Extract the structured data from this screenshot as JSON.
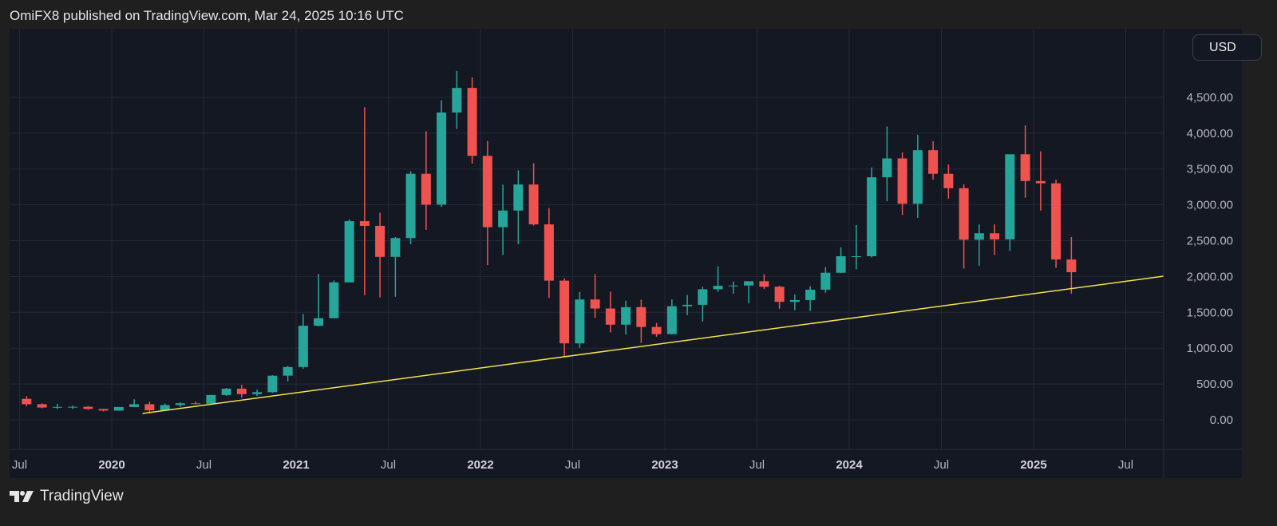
{
  "header": {
    "title": "OmiFX8 published on TradingView.com, Mar 24, 2025 10:16 UTC"
  },
  "currency_button": "USD",
  "footer": {
    "logo_text": "TradingView"
  },
  "colors": {
    "up": "#26a69a",
    "down": "#ef5350",
    "trendline": "#f2e14c",
    "background": "#141823",
    "grid": "#232836"
  },
  "chart_data": {
    "type": "candlestick",
    "interval_note": "",
    "y_axis": {
      "ticks": [
        "0.00",
        "500.00",
        "1,000.00",
        "1,500.00",
        "2,000.00",
        "2,500.00",
        "3,000.00",
        "3,500.00",
        "4,000.00",
        "4,500.00"
      ],
      "tick_values": [
        0,
        500,
        1000,
        1500,
        2000,
        2500,
        3000,
        3500,
        4000,
        4500
      ],
      "ylim": [
        -380,
        5440
      ],
      "position": "right"
    },
    "x_axis": {
      "ticks": [
        {
          "label": "Jul",
          "date": "2019-07-01",
          "year": false
        },
        {
          "label": "2020",
          "date": "2020-01-01",
          "year": true
        },
        {
          "label": "Jul",
          "date": "2020-07-01",
          "year": false
        },
        {
          "label": "2021",
          "date": "2021-01-01",
          "year": true
        },
        {
          "label": "Jul",
          "date": "2021-07-01",
          "year": false
        },
        {
          "label": "2022",
          "date": "2022-01-01",
          "year": true
        },
        {
          "label": "Jul",
          "date": "2022-07-01",
          "year": false
        },
        {
          "label": "2023",
          "date": "2023-01-01",
          "year": true
        },
        {
          "label": "Jul",
          "date": "2023-07-01",
          "year": false
        },
        {
          "label": "2024",
          "date": "2024-01-01",
          "year": true
        },
        {
          "label": "Jul",
          "date": "2024-07-01",
          "year": false
        },
        {
          "label": "2025",
          "date": "2025-01-01",
          "year": true
        },
        {
          "label": "Jul",
          "date": "2025-07-01",
          "year": false
        }
      ],
      "xlim": [
        "2019-06-25",
        "2025-09-15"
      ]
    },
    "grid": true,
    "candles_columns": [
      "date",
      "open",
      "high",
      "low",
      "close"
    ],
    "candles": [
      [
        "2019-07",
        293,
        330,
        191,
        218
      ],
      [
        "2019-08",
        218,
        231,
        163,
        172
      ],
      [
        "2019-09",
        172,
        224,
        152,
        180
      ],
      [
        "2019-10",
        180,
        198,
        152,
        182
      ],
      [
        "2019-11",
        182,
        194,
        139,
        152
      ],
      [
        "2019-12",
        152,
        152,
        117,
        129
      ],
      [
        "2020-01",
        129,
        180,
        127,
        179
      ],
      [
        "2020-02",
        179,
        287,
        177,
        218
      ],
      [
        "2020-03",
        218,
        253,
        90,
        133
      ],
      [
        "2020-04",
        133,
        227,
        130,
        206
      ],
      [
        "2020-05",
        206,
        245,
        176,
        231
      ],
      [
        "2020-06",
        231,
        254,
        216,
        225
      ],
      [
        "2020-07",
        225,
        348,
        224,
        346
      ],
      [
        "2020-08",
        346,
        445,
        335,
        435
      ],
      [
        "2020-09",
        435,
        488,
        308,
        359
      ],
      [
        "2020-10",
        359,
        420,
        334,
        386
      ],
      [
        "2020-11",
        386,
        623,
        374,
        616
      ],
      [
        "2020-12",
        616,
        752,
        535,
        737
      ],
      [
        "2021-01",
        737,
        1476,
        714,
        1313
      ],
      [
        "2021-02",
        1313,
        2036,
        1303,
        1418
      ],
      [
        "2021-03",
        1418,
        1945,
        1437,
        1918
      ],
      [
        "2021-04",
        1918,
        2797,
        1936,
        2772
      ],
      [
        "2021-05",
        2772,
        4362,
        1738,
        2707
      ],
      [
        "2021-06",
        2707,
        2890,
        1707,
        2274
      ],
      [
        "2021-07",
        2274,
        2550,
        1717,
        2536
      ],
      [
        "2021-08",
        2536,
        3471,
        2450,
        3433
      ],
      [
        "2021-09",
        3433,
        4027,
        2651,
        3002
      ],
      [
        "2021-10",
        3002,
        4460,
        2970,
        4288
      ],
      [
        "2021-11",
        4288,
        4868,
        4060,
        4631
      ],
      [
        "2021-12",
        4631,
        4778,
        3575,
        3683
      ],
      [
        "2022-01",
        3683,
        3890,
        2159,
        2688
      ],
      [
        "2022-02",
        2688,
        3282,
        2300,
        2920
      ],
      [
        "2022-03",
        2920,
        3482,
        2450,
        3283
      ],
      [
        "2022-04",
        3283,
        3580,
        2711,
        2727
      ],
      [
        "2022-05",
        2727,
        2955,
        1701,
        1942
      ],
      [
        "2022-06",
        1942,
        1974,
        880,
        1067
      ],
      [
        "2022-07",
        1067,
        1785,
        1006,
        1679
      ],
      [
        "2022-08",
        1679,
        2030,
        1422,
        1553
      ],
      [
        "2022-09",
        1553,
        1790,
        1220,
        1328
      ],
      [
        "2022-10",
        1328,
        1663,
        1190,
        1572
      ],
      [
        "2022-11",
        1572,
        1677,
        1073,
        1296
      ],
      [
        "2022-12",
        1296,
        1352,
        1160,
        1196
      ],
      [
        "2023-01",
        1196,
        1680,
        1190,
        1585
      ],
      [
        "2023-02",
        1585,
        1742,
        1461,
        1605
      ],
      [
        "2023-03",
        1605,
        1857,
        1370,
        1822
      ],
      [
        "2023-04",
        1822,
        2141,
        1785,
        1870
      ],
      [
        "2023-05",
        1870,
        1929,
        1760,
        1874
      ],
      [
        "2023-06",
        1874,
        1930,
        1626,
        1934
      ],
      [
        "2023-07",
        1934,
        2030,
        1825,
        1857
      ],
      [
        "2023-08",
        1857,
        1870,
        1550,
        1646
      ],
      [
        "2023-09",
        1646,
        1750,
        1530,
        1671
      ],
      [
        "2023-10",
        1671,
        1865,
        1520,
        1816
      ],
      [
        "2023-11",
        1816,
        2131,
        1773,
        2052
      ],
      [
        "2023-12",
        2052,
        2405,
        2048,
        2283
      ],
      [
        "2024-01",
        2283,
        2717,
        2100,
        2283
      ],
      [
        "2024-02",
        2283,
        3520,
        2265,
        3384
      ],
      [
        "2024-03",
        3384,
        4093,
        3050,
        3647
      ],
      [
        "2024-04",
        3647,
        3731,
        2858,
        3014
      ],
      [
        "2024-05",
        3014,
        3977,
        2818,
        3762
      ],
      [
        "2024-06",
        3762,
        3887,
        3350,
        3433
      ],
      [
        "2024-07",
        3433,
        3562,
        3086,
        3232
      ],
      [
        "2024-08",
        3232,
        3286,
        2111,
        2513
      ],
      [
        "2024-09",
        2513,
        2726,
        2150,
        2603
      ],
      [
        "2024-10",
        2603,
        2729,
        2300,
        2518
      ],
      [
        "2024-11",
        2518,
        3700,
        2357,
        3705
      ],
      [
        "2024-12",
        3705,
        4107,
        3100,
        3332
      ],
      [
        "2025-01",
        3332,
        3745,
        2920,
        3300
      ],
      [
        "2025-02",
        3300,
        3350,
        2120,
        2237
      ],
      [
        "2025-03",
        2237,
        2550,
        1760,
        2060
      ]
    ],
    "trendline": {
      "start": {
        "date": "2020-03-01",
        "price": 89
      },
      "end": {
        "date": "2025-09-15",
        "price": 2004
      }
    }
  }
}
